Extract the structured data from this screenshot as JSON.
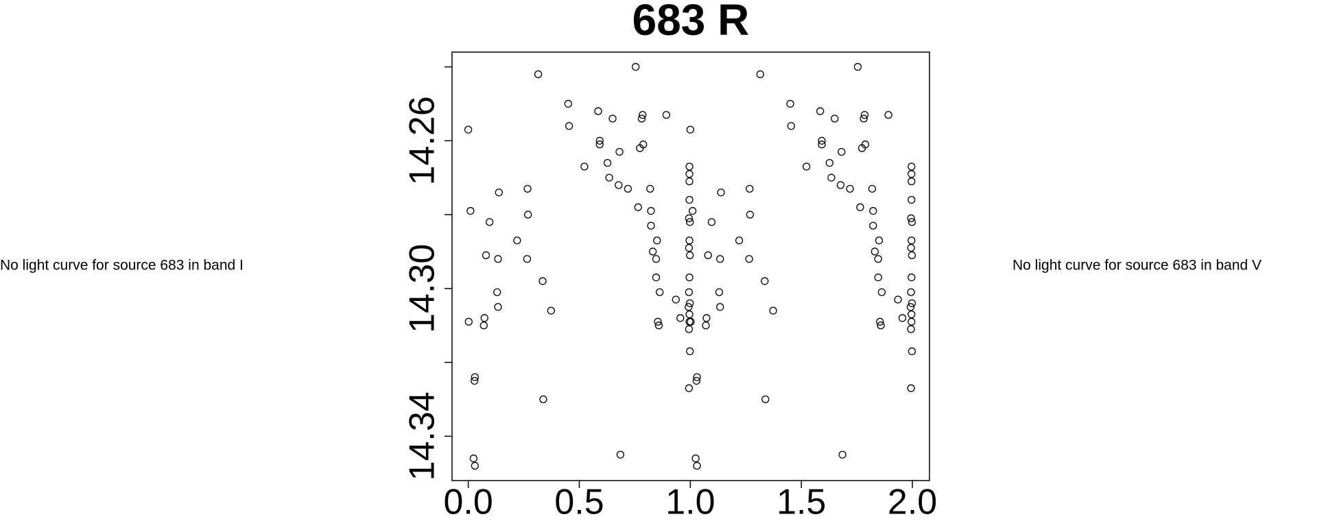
{
  "left_note": "No light curve for source 683 in band I",
  "right_note": "No light curve for source 683 in band V",
  "chart_data": {
    "type": "scatter",
    "title": "683 R",
    "color": "#000000",
    "y_reversed": true,
    "xlim": [
      -0.073,
      2.077
    ],
    "xticks": [
      {
        "value": 0,
        "label": "0.0"
      },
      {
        "value": 0.5,
        "label": "0.5"
      },
      {
        "value": 1,
        "label": "1.0"
      },
      {
        "value": 1.5,
        "label": "1.5"
      },
      {
        "value": 2,
        "label": "2.0"
      }
    ],
    "ylim": [
      14.236,
      14.352
    ],
    "yticks": [
      {
        "value": 14.24,
        "label": null
      },
      {
        "value": 14.26,
        "label": "14.26"
      },
      {
        "value": 14.28,
        "label": null
      },
      {
        "value": 14.3,
        "label": "14.30"
      },
      {
        "value": 14.32,
        "label": null
      },
      {
        "value": 14.34,
        "label": "14.34"
      }
    ],
    "x": [
      0.0,
      0.01,
      0.002,
      0.03,
      0.028,
      0.024,
      0.03,
      0.073,
      0.07,
      0.08,
      0.096,
      0.13,
      0.134,
      0.134,
      0.138,
      0.22,
      0.267,
      0.269,
      0.265,
      0.315,
      0.335,
      0.338,
      0.373,
      0.45,
      0.454,
      0.523,
      0.585,
      0.592,
      0.592,
      0.627,
      0.635,
      0.65,
      0.677,
      0.681,
      0.685,
      0.719,
      0.754,
      0.765,
      0.773,
      0.781,
      0.785,
      0.788,
      0.819,
      0.823,
      0.823,
      0.831,
      0.846,
      0.846,
      0.85,
      0.854,
      0.858,
      0.862,
      0.892,
      0.935,
      0.996,
      0.996,
      0.996,
      0.996,
      0.994,
      0.998,
      0.996,
      0.994,
      0.998,
      0.996,
      0.994,
      0.998,
      0.992,
      0.996,
      0.996,
      0.994,
      0.998,
      0.994,
      0.955,
      1.0,
      1.01,
      1.002,
      1.03,
      1.028,
      1.024,
      1.03,
      1.073,
      1.07,
      1.08,
      1.096,
      1.13,
      1.134,
      1.134,
      1.138,
      1.22,
      1.267,
      1.269,
      1.265,
      1.315,
      1.335,
      1.338,
      1.373,
      1.45,
      1.454,
      1.523,
      1.585,
      1.592,
      1.592,
      1.627,
      1.635,
      1.65,
      1.677,
      1.681,
      1.685,
      1.719,
      1.754,
      1.765,
      1.773,
      1.781,
      1.785,
      1.788,
      1.819,
      1.823,
      1.823,
      1.831,
      1.846,
      1.846,
      1.85,
      1.854,
      1.858,
      1.862,
      1.892,
      1.935,
      1.996,
      1.996,
      1.996,
      1.996,
      1.994,
      1.998,
      1.996,
      1.994,
      1.998,
      1.996,
      1.994,
      1.998,
      1.992,
      1.996,
      1.996,
      1.994,
      1.998,
      1.994,
      1.955
    ],
    "values": [
      14.257,
      14.279,
      14.309,
      14.324,
      14.325,
      14.346,
      14.348,
      14.308,
      14.31,
      14.291,
      14.282,
      14.301,
      14.305,
      14.292,
      14.274,
      14.287,
      14.273,
      14.28,
      14.292,
      14.242,
      14.298,
      14.33,
      14.306,
      14.25,
      14.256,
      14.267,
      14.252,
      14.26,
      14.261,
      14.266,
      14.27,
      14.254,
      14.272,
      14.263,
      14.345,
      14.273,
      14.24,
      14.278,
      14.262,
      14.254,
      14.253,
      14.261,
      14.273,
      14.279,
      14.283,
      14.29,
      14.292,
      14.297,
      14.287,
      14.309,
      14.31,
      14.301,
      14.253,
      14.303,
      14.267,
      14.269,
      14.271,
      14.276,
      14.281,
      14.282,
      14.287,
      14.289,
      14.291,
      14.297,
      14.301,
      14.304,
      14.305,
      14.307,
      14.309,
      14.311,
      14.317,
      14.327,
      14.308,
      14.257,
      14.279,
      14.309,
      14.324,
      14.325,
      14.346,
      14.348,
      14.308,
      14.31,
      14.291,
      14.282,
      14.301,
      14.305,
      14.292,
      14.274,
      14.287,
      14.273,
      14.28,
      14.292,
      14.242,
      14.298,
      14.33,
      14.306,
      14.25,
      14.256,
      14.267,
      14.252,
      14.26,
      14.261,
      14.266,
      14.27,
      14.254,
      14.272,
      14.263,
      14.345,
      14.273,
      14.24,
      14.278,
      14.262,
      14.254,
      14.253,
      14.261,
      14.273,
      14.279,
      14.283,
      14.29,
      14.292,
      14.297,
      14.287,
      14.309,
      14.31,
      14.301,
      14.253,
      14.303,
      14.267,
      14.269,
      14.271,
      14.276,
      14.281,
      14.282,
      14.287,
      14.289,
      14.291,
      14.297,
      14.301,
      14.304,
      14.305,
      14.307,
      14.309,
      14.311,
      14.317,
      14.327,
      14.308
    ]
  }
}
